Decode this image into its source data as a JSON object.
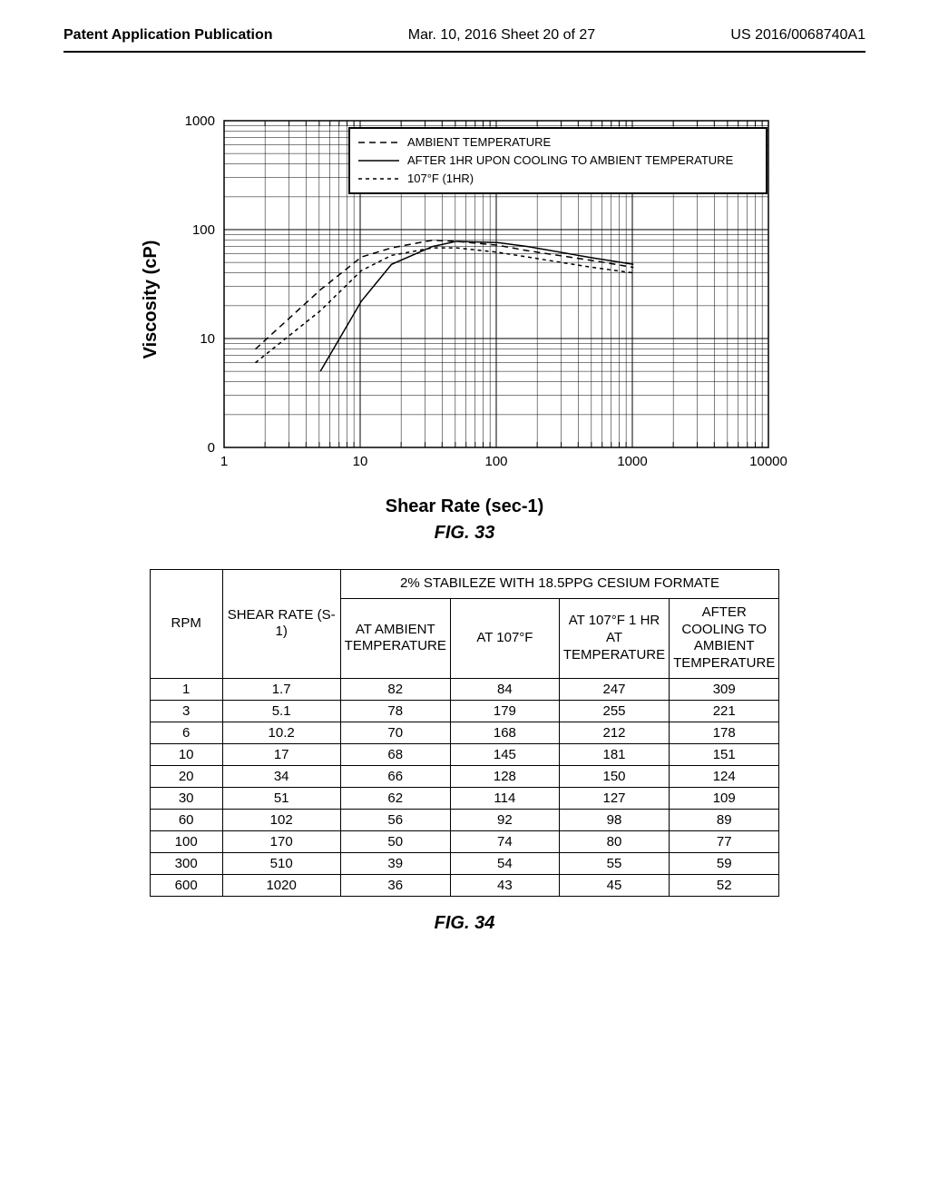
{
  "header": {
    "left": "Patent Application Publication",
    "center": "Mar. 10, 2016  Sheet 20 of 27",
    "right": "US 2016/0068740A1"
  },
  "chart": {
    "type": "line",
    "ylabel": "Viscosity (cP)",
    "xlabel": "Shear Rate (sec-1)",
    "caption": "FIG. 33",
    "background_color": "#ffffff",
    "grid_color": "#000000",
    "axis_color": "#000000",
    "x_scale": "log",
    "y_scale": "log",
    "xlim": [
      1,
      10000
    ],
    "ylim": [
      0,
      1000
    ],
    "x_ticks": [
      1,
      10,
      100,
      1000,
      10000
    ],
    "y_ticks": [
      0,
      10,
      100,
      1000
    ],
    "legend": {
      "position": "top-right-inside",
      "border_color": "#000000",
      "items": [
        {
          "label": "AMBIENT TEMPERATURE",
          "dash": "7,5",
          "color": "#000000"
        },
        {
          "label": "AFTER 1HR UPON COOLING TO AMBIENT TEMPERATURE",
          "dash": "none",
          "color": "#000000"
        },
        {
          "label": "107°F (1HR)",
          "dash": "4,4",
          "color": "#000000"
        }
      ]
    },
    "series": [
      {
        "name": "ambient",
        "dash": "7,5",
        "color": "#000000",
        "line_width": 1.5,
        "points": [
          [
            1.7,
            8
          ],
          [
            5.1,
            28
          ],
          [
            10.2,
            56
          ],
          [
            17,
            68
          ],
          [
            34,
            80
          ],
          [
            51,
            78
          ],
          [
            102,
            72
          ],
          [
            170,
            64
          ],
          [
            510,
            52
          ],
          [
            1020,
            45
          ]
        ]
      },
      {
        "name": "after_cooling",
        "dash": "none",
        "color": "#000000",
        "line_width": 1.5,
        "points": [
          [
            5.1,
            5
          ],
          [
            10.2,
            22
          ],
          [
            17,
            48
          ],
          [
            34,
            70
          ],
          [
            51,
            78
          ],
          [
            102,
            76
          ],
          [
            170,
            70
          ],
          [
            510,
            55
          ],
          [
            1020,
            48
          ]
        ]
      },
      {
        "name": "107f_1hr",
        "dash": "4,4",
        "color": "#000000",
        "line_width": 1.5,
        "points": [
          [
            1.7,
            6
          ],
          [
            5.1,
            18
          ],
          [
            10.2,
            42
          ],
          [
            17,
            58
          ],
          [
            34,
            68
          ],
          [
            51,
            68
          ],
          [
            102,
            62
          ],
          [
            170,
            56
          ],
          [
            510,
            45
          ],
          [
            1020,
            40
          ]
        ]
      }
    ]
  },
  "table": {
    "caption": "FIG. 34",
    "title_span": "2% STABILEZE WITH 18.5PPG CESIUM FORMATE",
    "columns": [
      "RPM",
      "SHEAR RATE (S-1)",
      "AT AMBIENT TEMPERATURE",
      "AT 107°F",
      "AT 107°F 1 HR AT TEMPERATURE",
      "AFTER COOLING TO AMBIENT TEMPERATURE"
    ],
    "rows": [
      [
        "1",
        "1.7",
        "82",
        "84",
        "247",
        "309"
      ],
      [
        "3",
        "5.1",
        "78",
        "179",
        "255",
        "221"
      ],
      [
        "6",
        "10.2",
        "70",
        "168",
        "212",
        "178"
      ],
      [
        "10",
        "17",
        "68",
        "145",
        "181",
        "151"
      ],
      [
        "20",
        "34",
        "66",
        "128",
        "150",
        "124"
      ],
      [
        "30",
        "51",
        "62",
        "114",
        "127",
        "109"
      ],
      [
        "60",
        "102",
        "56",
        "92",
        "98",
        "89"
      ],
      [
        "100",
        "170",
        "50",
        "74",
        "80",
        "77"
      ],
      [
        "300",
        "510",
        "39",
        "54",
        "55",
        "59"
      ],
      [
        "600",
        "1020",
        "36",
        "43",
        "45",
        "52"
      ]
    ]
  }
}
